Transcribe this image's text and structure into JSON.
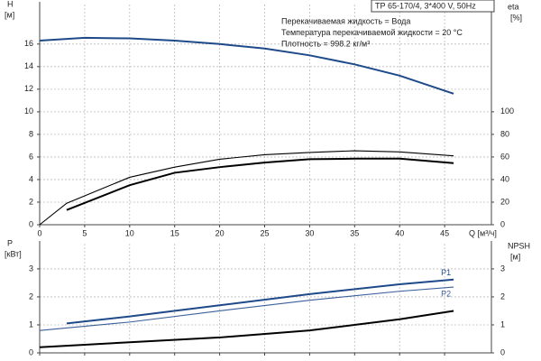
{
  "chart_data": [
    {
      "type": "line",
      "header": "ТР 65-170/4, 3*400 V, 50Hz",
      "annotations": [
        "Перекачиваемая жидкость = Вода",
        "Температура перекачиваемой жидкости = 20 °C",
        "Плотность = 998.2 кг/м³"
      ],
      "y_label": "H",
      "y_unit": "[м]",
      "y2_label": "eta",
      "y2_unit": "[%]",
      "x_label": "Q [м³/ч]",
      "xlim": [
        0,
        50
      ],
      "xticks": [
        0,
        5,
        10,
        15,
        20,
        25,
        30,
        35,
        40,
        45
      ],
      "ylim": [
        0,
        19.5
      ],
      "yticks": [
        0,
        2,
        4,
        6,
        8,
        10,
        12,
        14,
        16
      ],
      "y2lim": [
        0,
        195
      ],
      "y2ticks": [
        0,
        20,
        40,
        60,
        80,
        100
      ],
      "grid": true,
      "series": [
        {
          "color": "#1f4a8a",
          "x": [
            0,
            5,
            10,
            15,
            20,
            25,
            30,
            35,
            40,
            46
          ],
          "values": [
            16.3,
            16.55,
            16.5,
            16.3,
            16.0,
            15.6,
            15.0,
            14.2,
            13.2,
            11.6
          ]
        },
        {
          "color": "#000000",
          "axis": "y2",
          "x": [
            0,
            3,
            10,
            15,
            20,
            25,
            30,
            35,
            40,
            46
          ],
          "values": [
            0,
            19,
            42,
            51,
            58,
            62,
            64,
            65.5,
            64.5,
            61
          ]
        },
        {
          "color": "#000000",
          "axis": "y2",
          "x": [
            3,
            10,
            15,
            20,
            25,
            30,
            35,
            40,
            46
          ],
          "values": [
            13,
            35,
            46,
            51,
            55,
            58,
            58.5,
            58.5,
            54.5
          ]
        }
      ]
    },
    {
      "type": "line",
      "y_label": "P",
      "y_unit": "[кВт]",
      "y2_label": "NPSH",
      "y2_unit": "[м]",
      "xlim": [
        0,
        50
      ],
      "xticks": [
        0,
        5,
        10,
        15,
        20,
        25,
        30,
        35,
        40,
        45
      ],
      "ylim": [
        0,
        3.9
      ],
      "yticks": [
        0,
        1,
        2,
        3
      ],
      "y2lim": [
        0,
        3.9
      ],
      "y2ticks": [
        0,
        1,
        2,
        3
      ],
      "grid": true,
      "series": [
        {
          "name": "P1",
          "color": "#1f4a8a",
          "x": [
            3,
            10,
            20,
            30,
            40,
            46
          ],
          "values": [
            1.05,
            1.3,
            1.7,
            2.1,
            2.45,
            2.62
          ]
        },
        {
          "name": "P2",
          "color": "#3a5f9a",
          "x": [
            0,
            10,
            20,
            30,
            40,
            46
          ],
          "values": [
            0.8,
            1.1,
            1.5,
            1.88,
            2.2,
            2.35
          ]
        },
        {
          "color": "#000000",
          "axis": "y2",
          "x": [
            0,
            10,
            20,
            30,
            40,
            46
          ],
          "values": [
            0.2,
            0.38,
            0.55,
            0.8,
            1.2,
            1.5
          ]
        }
      ]
    }
  ]
}
